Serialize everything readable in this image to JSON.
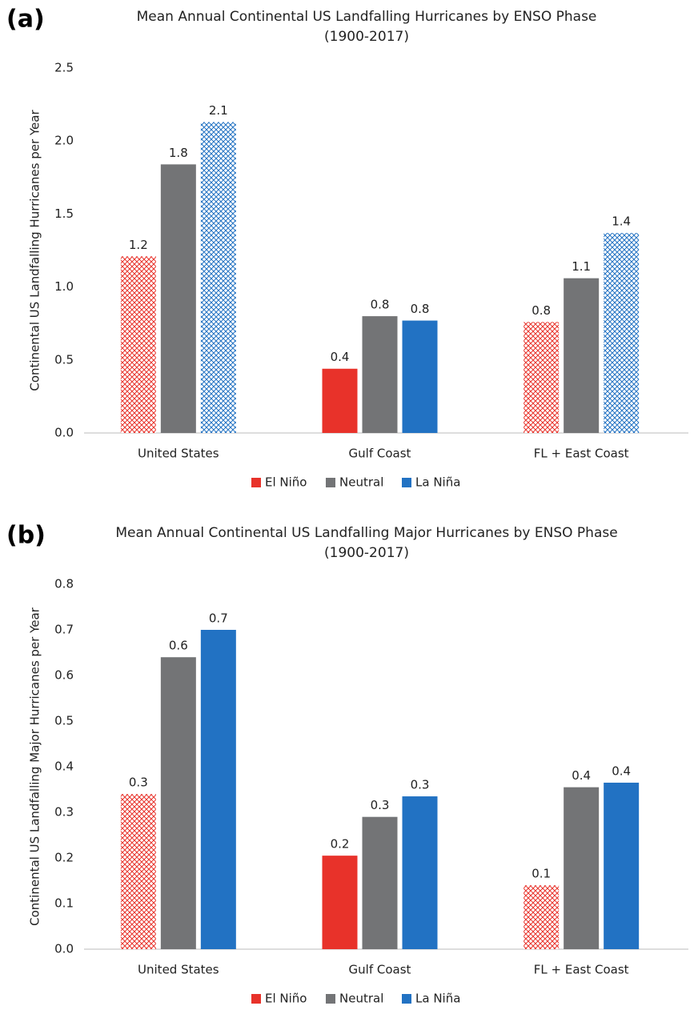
{
  "chart_data": [
    {
      "type": "bar",
      "panel": "(a)",
      "title": "Mean Annual Continental US Landfalling Hurricanes by ENSO Phase",
      "subtitle": "(1900-2017)",
      "y_label": "Continental US Landfalling Hurricanes per Year",
      "categories": [
        "United States",
        "Gulf Coast",
        "FL + East Coast"
      ],
      "series": [
        {
          "name": "El Niño",
          "color": "#e8322a",
          "values": [
            1.21,
            0.44,
            0.76
          ],
          "value_labels": [
            "1.2",
            "0.4",
            "0.8"
          ],
          "hatched": [
            true,
            false,
            true
          ]
        },
        {
          "name": "Neutral",
          "color": "#737476",
          "values": [
            1.84,
            0.8,
            1.06
          ],
          "value_labels": [
            "1.8",
            "0.8",
            "1.1"
          ],
          "hatched": [
            false,
            false,
            false
          ]
        },
        {
          "name": "La Niña",
          "color": "#2272c3",
          "values": [
            2.13,
            0.77,
            1.37
          ],
          "value_labels": [
            "2.1",
            "0.8",
            "1.4"
          ],
          "hatched": [
            true,
            false,
            true
          ]
        }
      ],
      "ylim": [
        0,
        2.5
      ],
      "yticks": [
        {
          "value": 0,
          "label": "0.0"
        },
        0.5,
        {
          "value": 1,
          "label": "1.0"
        },
        1.5,
        {
          "value": 2,
          "label": "2.0"
        },
        2.5
      ],
      "legend": "bottom"
    },
    {
      "type": "bar",
      "panel": "(b)",
      "title": "Mean Annual Continental US Landfalling Major Hurricanes by ENSO Phase",
      "subtitle": "(1900-2017)",
      "y_label": "Continental US Landfalling Major Hurricanes per Year",
      "categories": [
        "United States",
        "Gulf Coast",
        "FL + East Coast"
      ],
      "series": [
        {
          "name": "El Niño",
          "color": "#e8322a",
          "values": [
            0.34,
            0.205,
            0.14
          ],
          "value_labels": [
            "0.3",
            "0.2",
            "0.1"
          ],
          "hatched": [
            true,
            false,
            true
          ]
        },
        {
          "name": "Neutral",
          "color": "#737476",
          "values": [
            0.64,
            0.29,
            0.355
          ],
          "value_labels": [
            "0.6",
            "0.3",
            "0.4"
          ],
          "hatched": [
            false,
            false,
            false
          ]
        },
        {
          "name": "La Niña",
          "color": "#2272c3",
          "values": [
            0.7,
            0.335,
            0.365
          ],
          "value_labels": [
            "0.7",
            "0.3",
            "0.4"
          ],
          "hatched": [
            false,
            false,
            false
          ]
        }
      ],
      "ylim": [
        0,
        0.8
      ],
      "yticks": [
        {
          "value": 0,
          "label": "0.0"
        },
        0.1,
        0.2,
        0.3,
        0.4,
        0.5,
        0.6,
        0.7,
        0.8
      ],
      "legend": "bottom"
    }
  ]
}
